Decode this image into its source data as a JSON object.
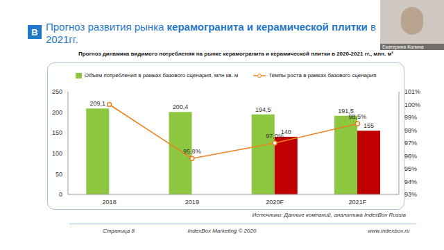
{
  "slide": {
    "logo": "B",
    "title": "Прогноз развития рынка керамогранита и керамической плитки в 2021гг.",
    "title_bold": "керамогранита и керамической плитки",
    "presenter": "Екатерина Колина",
    "source": "Источники: Данные компаний, аналитика IndexBox Russia",
    "footer": {
      "page": "Страница 8",
      "copyright": "IndexBox Marketing © 2020",
      "url": "www.indexbox.ru"
    }
  },
  "chart_data": {
    "type": "bar",
    "title": "Прогноз динамика видимого потребления на рынке керамогранита и керамической плитки в 2020-2021 гг., млн. м²",
    "categories": [
      "2018",
      "2019",
      "2020F",
      "2021F"
    ],
    "series": [
      {
        "name": "Объем потребления в рамках базового сценария, млн кв. м",
        "type": "bar",
        "color": "#8dc63f",
        "values": [
          209.1,
          200.4,
          194.5,
          191.5
        ],
        "value_labels": [
          "209,1",
          "200,4",
          "194,5",
          "191,5"
        ]
      },
      {
        "type": "bar",
        "color": "#c00000",
        "values": [
          null,
          null,
          140,
          155
        ]
      },
      {
        "name": "Темпы роста в рамках базового сценария",
        "type": "line",
        "color": "#f07f1e",
        "marker": "circle",
        "axis": "y2",
        "values": [
          100,
          95.8,
          97.0,
          98.5
        ],
        "value_labels": [
          null,
          "95,8%",
          "97,0%",
          "98,5%"
        ]
      }
    ],
    "ylim": [
      0,
      250
    ],
    "yticks": [
      0,
      50,
      100,
      150,
      200,
      250
    ],
    "y2lim": [
      93,
      101
    ],
    "y2ticks": [
      {
        "value": 93,
        "label": "93%"
      },
      {
        "value": 94,
        "label": "94%"
      },
      {
        "value": 95,
        "label": "95%"
      },
      {
        "value": 96,
        "label": "96%"
      },
      {
        "value": 97,
        "label": "97%"
      },
      {
        "value": 98,
        "label": "98%"
      },
      {
        "value": 99,
        "label": "99%"
      },
      {
        "value": 100,
        "label": "100%"
      },
      {
        "value": 101,
        "label": "101%"
      }
    ],
    "grid": false,
    "data_labels": true,
    "legend": "top"
  }
}
